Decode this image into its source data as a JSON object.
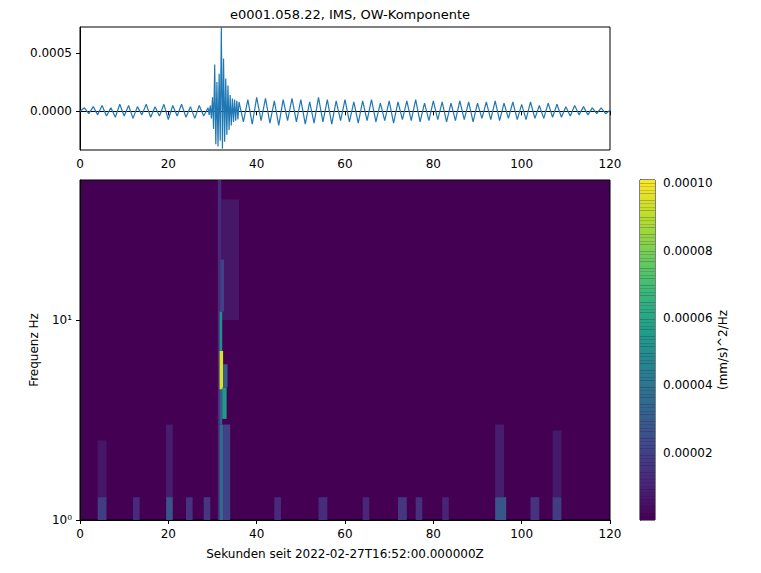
{
  "chart_data": [
    {
      "type": "line",
      "title": "e0001.058.22, IMS, OW-Komponente",
      "color": "#1f77b4",
      "xlim": [
        0,
        120
      ],
      "xticks": [
        0,
        20,
        40,
        60,
        80,
        100,
        120
      ],
      "ylim": [
        -0.00033,
        0.00072
      ],
      "yticks": [
        {
          "value": 0,
          "label": "0.0000"
        },
        {
          "value": 0.0005,
          "label": "0.0005"
        }
      ],
      "x": [
        0,
        1,
        2,
        3,
        4,
        5,
        6,
        7,
        8,
        9,
        10,
        11,
        12,
        13,
        14,
        15,
        16,
        17,
        18,
        19,
        20,
        21,
        22,
        23,
        24,
        25,
        26,
        27,
        28,
        29,
        29.25,
        29.5,
        29.75,
        30,
        30.25,
        30.5,
        30.75,
        31,
        31.25,
        31.5,
        31.75,
        32,
        32.25,
        32.5,
        32.75,
        33,
        33.25,
        33.5,
        33.75,
        34,
        34.25,
        34.5,
        34.75,
        35,
        35.25,
        35.5,
        35.75,
        36,
        37,
        38,
        39,
        40,
        41,
        42,
        43,
        44,
        45,
        46,
        47,
        48,
        49,
        50,
        51,
        52,
        53,
        54,
        55,
        56,
        57,
        58,
        59,
        60,
        61,
        62,
        63,
        64,
        65,
        66,
        67,
        68,
        69,
        70,
        71,
        72,
        73,
        74,
        75,
        76,
        77,
        78,
        79,
        80,
        81,
        82,
        83,
        84,
        85,
        86,
        87,
        88,
        89,
        90,
        91,
        92,
        93,
        94,
        95,
        96,
        97,
        98,
        99,
        100,
        101,
        102,
        103,
        104,
        105,
        106,
        107,
        108,
        109,
        110,
        111,
        112,
        113,
        114,
        115,
        116,
        117,
        118,
        119,
        120
      ],
      "values": [
        0,
        3e-05,
        -2e-05,
        4e-05,
        -3e-05,
        5e-05,
        -4e-05,
        3e-05,
        -5e-05,
        6e-05,
        -4e-05,
        5e-05,
        -6e-05,
        4e-05,
        -3e-05,
        6e-05,
        -5e-05,
        4e-05,
        -4e-05,
        6e-05,
        -7e-05,
        5e-05,
        -4e-05,
        6e-05,
        -5e-05,
        4e-05,
        -6e-05,
        5e-05,
        -4e-05,
        3e-05,
        -3e-05,
        5e-05,
        -6e-05,
        0.00012,
        -0.00015,
        0.0004,
        -0.00028,
        0.00025,
        -0.0003,
        0.00032,
        -0.00025,
        0.00072,
        -0.00032,
        0.00045,
        -0.00026,
        0.00028,
        -0.0002,
        0.00022,
        -0.00016,
        0.00014,
        -0.00012,
        0.00011,
        -9e-05,
        0.0001,
        -8e-05,
        9e-05,
        -7e-05,
        8e-05,
        -9e-05,
        0.0001,
        -0.00011,
        0.00012,
        -8e-05,
        0.00011,
        -0.0001,
        9e-05,
        -0.00012,
        0.0001,
        -8e-05,
        0.00011,
        -9e-05,
        0.0001,
        -0.00011,
        8e-05,
        -0.0001,
        0.00012,
        -9e-05,
        0.0001,
        -0.00011,
        9e-05,
        -8e-05,
        0.0001,
        -9e-05,
        8e-05,
        -0.0001,
        9e-05,
        -8e-05,
        0.0001,
        -9e-05,
        7e-05,
        -8e-05,
        9e-05,
        -0.0001,
        8e-05,
        -7e-05,
        9e-05,
        -8e-05,
        0.0001,
        -9e-05,
        7e-05,
        -8e-05,
        9e-05,
        -7e-05,
        8e-05,
        -9e-05,
        7e-05,
        -8e-05,
        9e-05,
        -7e-05,
        8e-05,
        -9e-05,
        7e-05,
        -6e-05,
        8e-05,
        -7e-05,
        9e-05,
        -8e-05,
        7e-05,
        -6e-05,
        8e-05,
        -7e-05,
        6e-05,
        -7e-05,
        8e-05,
        -6e-05,
        5e-05,
        -6e-05,
        7e-05,
        -5e-05,
        6e-05,
        -5e-05,
        4e-05,
        -4e-05,
        5e-05,
        -3e-05,
        4e-05,
        -3e-05,
        3e-05,
        -2e-05,
        3e-05,
        -2e-05,
        1e-05
      ]
    },
    {
      "type": "heatmap",
      "xlabel": "Sekunden seit 2022-02-27T16:52:00.000000Z",
      "ylabel": "Frequenz Hz",
      "log": "y",
      "xlim": [
        0,
        120
      ],
      "xticks": [
        0,
        20,
        40,
        60,
        80,
        100,
        120
      ],
      "ylim": [
        1,
        50
      ],
      "yticks": [
        {
          "value": 1,
          "label": "10⁰"
        },
        {
          "value": 10,
          "label": "10¹"
        }
      ],
      "cells": [
        [
          32,
          36,
          10,
          40,
          6e-06
        ],
        [
          31.2,
          32,
          1,
          50,
          1.2e-05
        ],
        [
          32.4,
          34,
          1,
          3,
          2e-05
        ],
        [
          31.6,
          32.4,
          1,
          3,
          3.5e-05
        ],
        [
          31.6,
          32.2,
          3,
          4.5,
          3e-05
        ],
        [
          31.6,
          32.4,
          4.5,
          7,
          9.5e-05
        ],
        [
          31.6,
          32.2,
          7,
          11,
          5e-05
        ],
        [
          32.2,
          33.2,
          3.2,
          4.6,
          5.5e-05
        ],
        [
          32.4,
          33.4,
          4.6,
          6,
          3e-05
        ],
        [
          31.8,
          32.6,
          11,
          20,
          2e-05
        ],
        [
          4,
          6,
          1.3,
          2.5,
          6e-06
        ],
        [
          19.5,
          21,
          1.3,
          3,
          8e-06
        ],
        [
          94,
          96,
          1.3,
          3,
          8e-06
        ],
        [
          107,
          109,
          1.3,
          2.8,
          7e-06
        ],
        [
          4,
          6,
          1,
          1.3,
          1.8e-05
        ],
        [
          12,
          13.5,
          1,
          1.3,
          1.2e-05
        ],
        [
          19.5,
          21,
          1,
          1.3,
          2.6e-05
        ],
        [
          24,
          25.5,
          1,
          1.3,
          1.5e-05
        ],
        [
          28,
          29.5,
          1,
          1.3,
          1.6e-05
        ],
        [
          44,
          45.5,
          1,
          1.3,
          1.2e-05
        ],
        [
          54,
          56,
          1,
          1.3,
          1.3e-05
        ],
        [
          64,
          65.5,
          1,
          1.3,
          1.1e-05
        ],
        [
          72,
          74,
          1,
          1.3,
          1.6e-05
        ],
        [
          76,
          77.5,
          1,
          1.3,
          1.4e-05
        ],
        [
          82,
          83.5,
          1,
          1.3,
          1e-05
        ],
        [
          94,
          96.5,
          1,
          1.3,
          2.7e-05
        ],
        [
          102,
          104,
          1,
          1.3,
          1.5e-05
        ],
        [
          107,
          109,
          1,
          1.3,
          1.8e-05
        ]
      ],
      "colorbar": {
        "label": "(mm/s)^2/Hz",
        "range": [
          0,
          0.000101
        ],
        "ticks": [
          {
            "value": 2e-05,
            "label": "0.00002"
          },
          {
            "value": 4e-05,
            "label": "0.00004"
          },
          {
            "value": 6e-05,
            "label": "0.00006"
          },
          {
            "value": 8e-05,
            "label": "0.00008"
          },
          {
            "value": 0.0001,
            "label": "0.00010"
          }
        ]
      }
    }
  ]
}
